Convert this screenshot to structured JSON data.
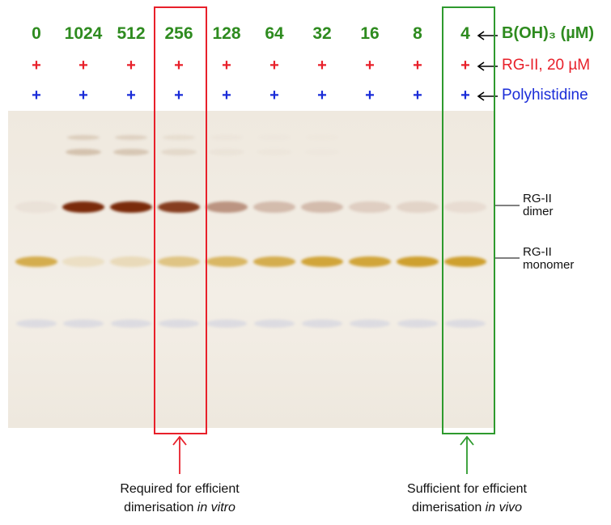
{
  "lanes": [
    "0",
    "1024",
    "512",
    "256",
    "128",
    "64",
    "32",
    "16",
    "8",
    "4"
  ],
  "row_labels": {
    "boron": "B(OH)₃ (µM)",
    "rgii": "RG-II, 20 µM",
    "polyhis": "Polyhistidine"
  },
  "plus_sign": "+",
  "band_labels": {
    "dimer_line1": "RG-II",
    "dimer_line2": "dimer",
    "monomer_line1": "RG-II",
    "monomer_line2": "monomer"
  },
  "notes": {
    "left_line1": "Required for efficient",
    "left_line2_prefix": "dimerisation ",
    "left_line2_italic": "in vitro",
    "right_line1": "Sufficient for efficient",
    "right_line2_prefix": "dimerisation ",
    "right_line2_italic": "in vivo"
  },
  "colors": {
    "label_green": "#2e8b1f",
    "plus_red": "#e8202a",
    "plus_blue": "#1a2cd8",
    "box_red": "#e8202a",
    "box_green": "#2e9a2e",
    "gel_bg": "#efe9df",
    "band_dimer": "#7a2a0a",
    "band_monomer": "#c8920e"
  },
  "band_intensity": {
    "dimer": [
      0.05,
      1.0,
      1.0,
      0.9,
      0.45,
      0.25,
      0.25,
      0.15,
      0.12,
      0.08
    ],
    "monomer": [
      0.7,
      0.15,
      0.2,
      0.45,
      0.6,
      0.7,
      0.8,
      0.8,
      0.85,
      0.85
    ],
    "upper": [
      0.0,
      0.35,
      0.3,
      0.15,
      0.05,
      0.03,
      0.02,
      0.0,
      0.0,
      0.0
    ]
  }
}
